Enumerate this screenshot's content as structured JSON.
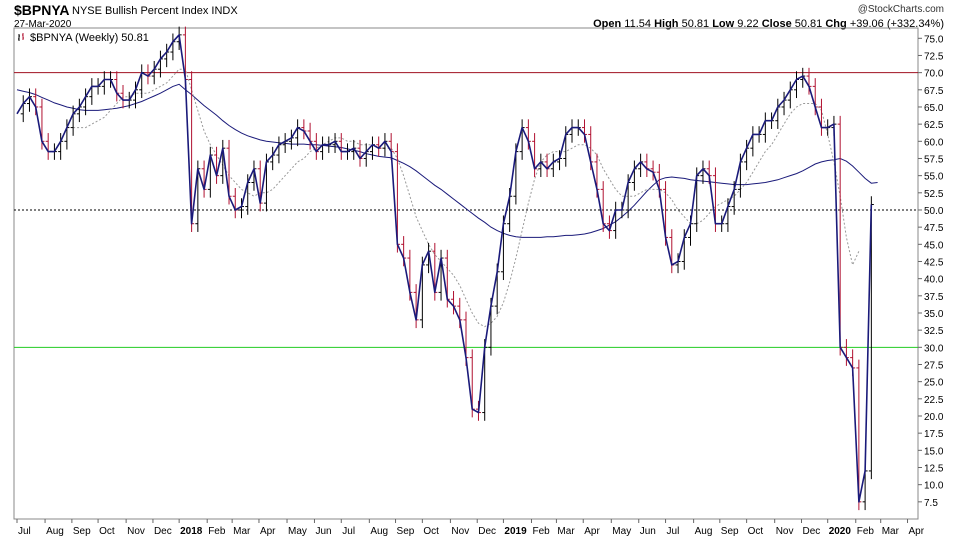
{
  "header": {
    "symbol": "$BPNYA",
    "description": "NYSE Bullish Percent Index",
    "exchange": "INDX",
    "date": "27-Mar-2020",
    "copyright": "@StockCharts.com",
    "ohlc": {
      "open_label": "Open",
      "open": "11.54",
      "high_label": "High",
      "high": "50.81",
      "low_label": "Low",
      "low": "9.22",
      "close_label": "Close",
      "close": "50.81",
      "chg_label": "Chg",
      "chg": "+39.06 (+332.34%)"
    }
  },
  "legend": {
    "label": "$BPNYA (Weekly) 50.81"
  },
  "colors": {
    "price_line": "#1a1a7a",
    "up_bar": "#000000",
    "down_bar": "#b01030",
    "ma_slow": "#1a1a7a",
    "ma_fast": "#999999",
    "line_70": "#a01020",
    "line_30": "#22cc22",
    "line_50": "#000000"
  },
  "chart_data": {
    "type": "line",
    "ylim": [
      5,
      76.5
    ],
    "yticks": [
      7.5,
      10.0,
      12.5,
      15.0,
      17.5,
      20.0,
      22.5,
      25.0,
      27.5,
      30.0,
      32.5,
      35.0,
      37.5,
      40.0,
      42.5,
      45.0,
      47.5,
      50.0,
      52.5,
      55.0,
      57.5,
      60.0,
      62.5,
      65.0,
      67.5,
      70.0,
      72.5,
      75.0
    ],
    "ytick_labels": [
      "7.5",
      "10.0",
      "12.5",
      "15.0",
      "17.5",
      "20.0",
      "22.5",
      "25.0",
      "27.5",
      "30.0",
      "32.5",
      "35.0",
      "37.5",
      "40.0",
      "42.5",
      "45.0",
      "47.5",
      "50.0",
      "52.5",
      "55.0",
      "57.5",
      "60.0",
      "62.5",
      "65.0",
      "67.5",
      "70.0",
      "72.5",
      "75.0"
    ],
    "xlim": [
      0,
      144
    ],
    "xtick_labels": [
      {
        "label": "Jul",
        "x": 0,
        "bold": false
      },
      {
        "label": "Aug",
        "x": 4.5,
        "bold": false
      },
      {
        "label": "Sep",
        "x": 8.8,
        "bold": false
      },
      {
        "label": "Oct",
        "x": 13,
        "bold": false
      },
      {
        "label": "Nov",
        "x": 17.5,
        "bold": false
      },
      {
        "label": "Dec",
        "x": 21.8,
        "bold": false
      },
      {
        "label": "2018",
        "x": 26,
        "bold": true
      },
      {
        "label": "Feb",
        "x": 30.5,
        "bold": false
      },
      {
        "label": "Mar",
        "x": 34.5,
        "bold": false
      },
      {
        "label": "Apr",
        "x": 38.8,
        "bold": false
      },
      {
        "label": "May",
        "x": 43.3,
        "bold": false
      },
      {
        "label": "Jun",
        "x": 47.7,
        "bold": false
      },
      {
        "label": "Jul",
        "x": 52,
        "bold": false
      },
      {
        "label": "Aug",
        "x": 56.5,
        "bold": false
      },
      {
        "label": "Sep",
        "x": 60.7,
        "bold": false
      },
      {
        "label": "Oct",
        "x": 65,
        "bold": false
      },
      {
        "label": "Nov",
        "x": 69.5,
        "bold": false
      },
      {
        "label": "Dec",
        "x": 73.8,
        "bold": false
      },
      {
        "label": "2019",
        "x": 78,
        "bold": true
      },
      {
        "label": "Feb",
        "x": 82.5,
        "bold": false
      },
      {
        "label": "Mar",
        "x": 86.5,
        "bold": false
      },
      {
        "label": "Apr",
        "x": 90.8,
        "bold": false
      },
      {
        "label": "May",
        "x": 95.3,
        "bold": false
      },
      {
        "label": "Jun",
        "x": 99.7,
        "bold": false
      },
      {
        "label": "Jul",
        "x": 104,
        "bold": false
      },
      {
        "label": "Aug",
        "x": 108.5,
        "bold": false
      },
      {
        "label": "Sep",
        "x": 112.7,
        "bold": false
      },
      {
        "label": "Oct",
        "x": 117,
        "bold": false
      },
      {
        "label": "Nov",
        "x": 121.5,
        "bold": false
      },
      {
        "label": "Dec",
        "x": 125.8,
        "bold": false
      },
      {
        "label": "2020",
        "x": 130,
        "bold": true
      },
      {
        "label": "Feb",
        "x": 134.5,
        "bold": false
      },
      {
        "label": "Mar",
        "x": 138.5,
        "bold": false
      },
      {
        "label": "Apr",
        "x": 142.8,
        "bold": false
      }
    ],
    "reference_lines": [
      {
        "y": 70,
        "style": "solid",
        "color_key": "line_70"
      },
      {
        "y": 30,
        "style": "solid",
        "color_key": "line_30"
      },
      {
        "y": 50,
        "style": "dotted",
        "color_key": "line_50"
      }
    ],
    "series": [
      {
        "kind": "price",
        "values": [
          64,
          65.5,
          66.5,
          65,
          60,
          58.5,
          58.5,
          60,
          62,
          64,
          65,
          66.5,
          68,
          68,
          69,
          69,
          67,
          66,
          66,
          67.5,
          70,
          69.5,
          70.5,
          72,
          73,
          74.5,
          75.5,
          69,
          48,
          56,
          53,
          58,
          55,
          59,
          52,
          50,
          50.5,
          54,
          56,
          51,
          57,
          58,
          59.5,
          60,
          60.5,
          62,
          61.5,
          60,
          58.5,
          59.5,
          59.5,
          60,
          58.5,
          58.5,
          59,
          57.5,
          58.5,
          59.5,
          59,
          60,
          58.5,
          45,
          43,
          38,
          34,
          42,
          44,
          38,
          43,
          37,
          36,
          34,
          28.5,
          21,
          20.5,
          30,
          36,
          41,
          48,
          52,
          58.5,
          62,
          60,
          56,
          57,
          56,
          57,
          57.5,
          61,
          62,
          62,
          61,
          57,
          53,
          48,
          47,
          50,
          50,
          54,
          56,
          57,
          56,
          55.5,
          53,
          46,
          42,
          42.5,
          46,
          48,
          55,
          56,
          55,
          48,
          48,
          50.5,
          53,
          57,
          59,
          61,
          61,
          63,
          63,
          65,
          66,
          67.5,
          69,
          69.5,
          68,
          65,
          62,
          62,
          62.5,
          30,
          28.5,
          27,
          7.5,
          12,
          50.8
        ]
      },
      {
        "kind": "ma_slow",
        "values": [
          67.5,
          67.3,
          67.1,
          66.8,
          66.4,
          66,
          65.6,
          65.3,
          65,
          64.8,
          64.6,
          64.5,
          64.5,
          64.5,
          64.6,
          64.7,
          64.8,
          65,
          65.2,
          65.5,
          65.8,
          66.2,
          66.6,
          67,
          67.5,
          68,
          68.3,
          67.5,
          66.8,
          66,
          65.2,
          64.5,
          63.8,
          63,
          62.3,
          61.7,
          61.2,
          60.8,
          60.5,
          60.2,
          60,
          59.9,
          59.8,
          59.7,
          59.6,
          59.6,
          59.6,
          59.5,
          59.5,
          59.4,
          59.3,
          59.2,
          59.1,
          58.9,
          58.7,
          58.5,
          58.2,
          58,
          57.8,
          57.7,
          57.6,
          57.2,
          56.8,
          56.3,
          55.7,
          55,
          54.3,
          53.6,
          53,
          52.3,
          51.6,
          50.9,
          50.2,
          49.5,
          48.8,
          48.2,
          47.5,
          47,
          46.6,
          46.3,
          46.1,
          46,
          46,
          46,
          46,
          46.1,
          46.1,
          46.2,
          46.3,
          46.3,
          46.4,
          46.5,
          46.7,
          47,
          47.3,
          47.8,
          48.3,
          49,
          49.8,
          50.7,
          51.7,
          52.7,
          53.6,
          54.4,
          54.7,
          54.8,
          54.7,
          54.6,
          54.4,
          54.3,
          54.2,
          54.1,
          54,
          53.9,
          53.8,
          53.7,
          53.7,
          53.7,
          53.8,
          53.9,
          54,
          54.2,
          54.4,
          54.7,
          55,
          55.3,
          55.7,
          56.2,
          56.7,
          57,
          57.2,
          57.3,
          57.5,
          57.1,
          56.4,
          55.5,
          54.6,
          53.9,
          54
        ]
      },
      {
        "kind": "ma_fast",
        "values": [
          null,
          null,
          null,
          null,
          null,
          null,
          null,
          null,
          null,
          62,
          62,
          62,
          62.5,
          63,
          63.5,
          64.5,
          65.5,
          66.5,
          66.5,
          67,
          67,
          67,
          67.5,
          68,
          68.5,
          69.5,
          70.5,
          70.5,
          67.5,
          64.5,
          61.5,
          59.5,
          58,
          56.5,
          55,
          54,
          53,
          52.5,
          52,
          52.5,
          52.5,
          53,
          54,
          55,
          56,
          57,
          57.5,
          58.5,
          59,
          59.5,
          60,
          60.5,
          60.5,
          60,
          60,
          59.5,
          59.5,
          59.5,
          59,
          59,
          59,
          57.5,
          55,
          52,
          49,
          47,
          45,
          43.5,
          42.5,
          41.5,
          40.5,
          39,
          37,
          35,
          33.5,
          33,
          33.5,
          34.5,
          36.5,
          39.5,
          43,
          47,
          51,
          54.5,
          57,
          58,
          58.5,
          58.5,
          58.5,
          59,
          59.5,
          59.5,
          59,
          58,
          56,
          54.5,
          53,
          52,
          52,
          52,
          52.5,
          53,
          53,
          53,
          52.5,
          51.5,
          50,
          49,
          48,
          48,
          48.5,
          49.5,
          50.5,
          51,
          51.5,
          52,
          53,
          54,
          55.5,
          57,
          58.5,
          59.5,
          61,
          62.5,
          64,
          65,
          65.5,
          65.5,
          65.5,
          64.5,
          61,
          57,
          52,
          46,
          42,
          44
        ]
      }
    ]
  }
}
